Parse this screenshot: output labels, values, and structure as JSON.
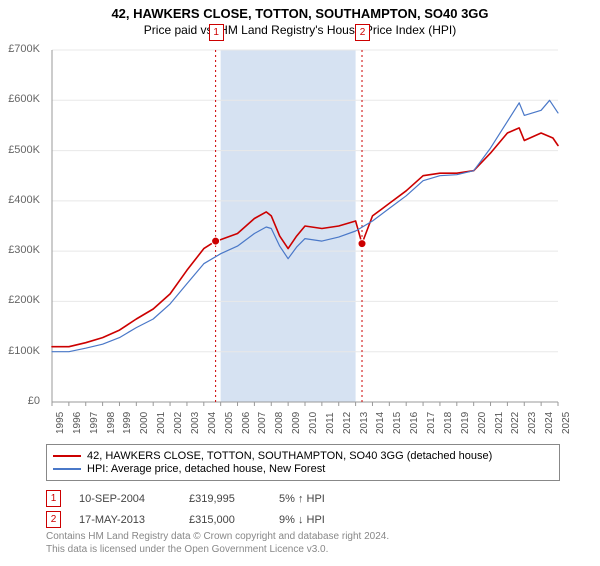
{
  "title": "42, HAWKERS CLOSE, TOTTON, SOUTHAMPTON, SO40 3GG",
  "subtitle": "Price paid vs. HM Land Registry's House Price Index (HPI)",
  "chart": {
    "type": "line",
    "background_color": "#ffffff",
    "axis_color": "#999999",
    "grid_color": "#e8e8e8",
    "shaded_color": "#d6e2f2",
    "shaded_range": [
      2005,
      2013
    ],
    "xlim": [
      1995,
      2025
    ],
    "ylim": [
      0,
      700000
    ],
    "ytick_step": 100000,
    "ytick_labels": [
      "£0",
      "£100K",
      "£200K",
      "£300K",
      "£400K",
      "£500K",
      "£600K",
      "£700K"
    ],
    "xtick_step": 1,
    "xtick_labels": [
      "1995",
      "1996",
      "1997",
      "1998",
      "1999",
      "2000",
      "2001",
      "2002",
      "2003",
      "2004",
      "2005",
      "2006",
      "2007",
      "2008",
      "2009",
      "2010",
      "2011",
      "2012",
      "2013",
      "2014",
      "2015",
      "2016",
      "2017",
      "2018",
      "2019",
      "2020",
      "2021",
      "2022",
      "2023",
      "2024",
      "2025"
    ],
    "title_fontsize": 13,
    "subtitle_fontsize": 12,
    "tick_fontsize": 10,
    "series": [
      {
        "name": "property",
        "color": "#cc0000",
        "width": 1.6,
        "data": [
          [
            1995,
            110000
          ],
          [
            1996,
            110000
          ],
          [
            1997,
            118000
          ],
          [
            1998,
            128000
          ],
          [
            1999,
            143000
          ],
          [
            2000,
            165000
          ],
          [
            2001,
            185000
          ],
          [
            2002,
            215000
          ],
          [
            2003,
            262000
          ],
          [
            2004,
            305000
          ],
          [
            2004.7,
            320000
          ],
          [
            2005,
            323000
          ],
          [
            2006,
            335000
          ],
          [
            2007,
            365000
          ],
          [
            2007.7,
            378000
          ],
          [
            2008,
            370000
          ],
          [
            2008.5,
            330000
          ],
          [
            2009,
            305000
          ],
          [
            2009.5,
            330000
          ],
          [
            2010,
            350000
          ],
          [
            2011,
            345000
          ],
          [
            2012,
            350000
          ],
          [
            2013,
            360000
          ],
          [
            2013.38,
            315000
          ],
          [
            2014,
            370000
          ],
          [
            2015,
            395000
          ],
          [
            2016,
            420000
          ],
          [
            2017,
            450000
          ],
          [
            2018,
            455000
          ],
          [
            2019,
            455000
          ],
          [
            2020,
            460000
          ],
          [
            2021,
            495000
          ],
          [
            2022,
            535000
          ],
          [
            2022.7,
            545000
          ],
          [
            2023,
            520000
          ],
          [
            2024,
            535000
          ],
          [
            2024.7,
            525000
          ],
          [
            2025,
            510000
          ]
        ]
      },
      {
        "name": "hpi",
        "color": "#4a78c8",
        "width": 1.2,
        "data": [
          [
            1995,
            100000
          ],
          [
            1996,
            100000
          ],
          [
            1997,
            107000
          ],
          [
            1998,
            115000
          ],
          [
            1999,
            128000
          ],
          [
            2000,
            148000
          ],
          [
            2001,
            165000
          ],
          [
            2002,
            195000
          ],
          [
            2003,
            235000
          ],
          [
            2004,
            275000
          ],
          [
            2005,
            295000
          ],
          [
            2006,
            310000
          ],
          [
            2007,
            335000
          ],
          [
            2007.7,
            348000
          ],
          [
            2008,
            345000
          ],
          [
            2008.5,
            310000
          ],
          [
            2009,
            285000
          ],
          [
            2009.5,
            308000
          ],
          [
            2010,
            325000
          ],
          [
            2011,
            320000
          ],
          [
            2012,
            328000
          ],
          [
            2013,
            340000
          ],
          [
            2014,
            360000
          ],
          [
            2015,
            385000
          ],
          [
            2016,
            410000
          ],
          [
            2017,
            440000
          ],
          [
            2018,
            450000
          ],
          [
            2019,
            452000
          ],
          [
            2020,
            460000
          ],
          [
            2021,
            505000
          ],
          [
            2022,
            558000
          ],
          [
            2022.7,
            595000
          ],
          [
            2023,
            570000
          ],
          [
            2024,
            580000
          ],
          [
            2024.5,
            600000
          ],
          [
            2025,
            575000
          ]
        ]
      }
    ],
    "markers": [
      {
        "label": "1",
        "x": 2004.7,
        "y": 320000,
        "dashed_line_color": "#cc0000"
      },
      {
        "label": "2",
        "x": 2013.38,
        "y": 315000,
        "dashed_line_color": "#cc0000"
      }
    ]
  },
  "legend": {
    "items": [
      {
        "color": "#cc0000",
        "label": "42, HAWKERS CLOSE, TOTTON, SOUTHAMPTON, SO40 3GG (detached house)"
      },
      {
        "color": "#4a78c8",
        "label": "HPI: Average price, detached house, New Forest"
      }
    ]
  },
  "events": [
    {
      "marker": "1",
      "date": "10-SEP-2004",
      "price": "£319,995",
      "pct": "5% ↑ HPI"
    },
    {
      "marker": "2",
      "date": "17-MAY-2013",
      "price": "£315,000",
      "pct": "9% ↓ HPI"
    }
  ],
  "footer": {
    "line1": "Contains HM Land Registry data © Crown copyright and database right 2024.",
    "line2": "This data is licensed under the Open Government Licence v3.0."
  },
  "colors": {
    "marker_border": "#cc0000",
    "text_muted": "#888888"
  }
}
